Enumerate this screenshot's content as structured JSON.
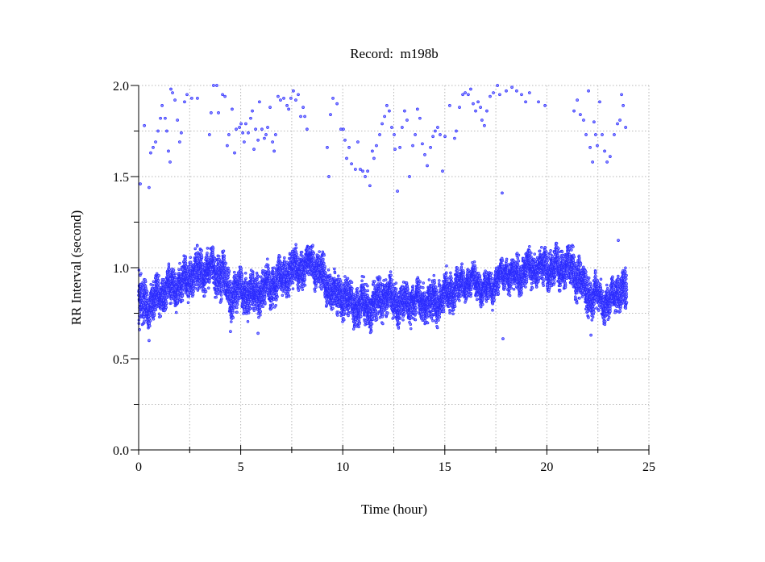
{
  "chart_data": {
    "type": "scatter",
    "title": "Record:  m198b",
    "xlabel": "Time (hour)",
    "ylabel": "RR Interval (second)",
    "xlim": [
      0,
      25
    ],
    "ylim": [
      0,
      2.0
    ],
    "xticks": [
      0,
      5,
      10,
      15,
      20,
      25
    ],
    "xtick_labels": [
      "0",
      "5",
      "10",
      "15",
      "20",
      "25"
    ],
    "xminor_ticks": [
      2.5,
      7.5,
      12.5,
      17.5,
      22.5
    ],
    "yticks": [
      0,
      0.5,
      1.0,
      1.5,
      2.0
    ],
    "ytick_labels": [
      "0.0",
      "0.5",
      "1.0",
      "1.5",
      "2.0"
    ],
    "yminor_ticks": [
      0.25,
      0.75,
      1.25,
      1.75
    ],
    "grid": true,
    "marker": "open-circle",
    "color": "#2a2aff",
    "dense_band": {
      "hours": [
        0,
        0.5,
        1,
        1.5,
        2,
        2.5,
        3,
        3.5,
        4,
        4.5,
        5,
        5.5,
        6,
        6.5,
        7,
        7.5,
        8,
        8.5,
        9,
        9.5,
        10,
        10.5,
        11,
        11.5,
        12,
        12.5,
        13,
        13.5,
        14,
        14.5,
        15,
        15.5,
        16,
        16.5,
        17,
        17.5,
        18,
        18.5,
        19,
        19.5,
        20,
        20.5,
        21,
        21.5,
        22,
        22.5,
        23,
        23.5,
        23.9
      ],
      "low": [
        0.65,
        0.7,
        0.75,
        0.8,
        0.8,
        0.85,
        0.88,
        0.9,
        0.85,
        0.75,
        0.78,
        0.75,
        0.78,
        0.8,
        0.85,
        0.88,
        0.9,
        0.95,
        0.85,
        0.75,
        0.75,
        0.7,
        0.68,
        0.7,
        0.75,
        0.72,
        0.7,
        0.72,
        0.72,
        0.7,
        0.75,
        0.8,
        0.85,
        0.85,
        0.8,
        0.85,
        0.9,
        0.85,
        0.9,
        0.92,
        0.9,
        0.9,
        0.9,
        0.85,
        0.75,
        0.75,
        0.72,
        0.78,
        0.75
      ],
      "high": [
        0.95,
        0.9,
        0.95,
        0.98,
        1.0,
        1.05,
        1.08,
        1.08,
        1.1,
        0.95,
        0.98,
        0.95,
        0.98,
        1.0,
        1.05,
        1.08,
        1.1,
        1.12,
        1.05,
        0.95,
        0.95,
        0.9,
        0.9,
        0.9,
        0.95,
        0.92,
        0.9,
        0.92,
        0.9,
        0.92,
        0.95,
        0.98,
        1.0,
        1.0,
        0.95,
        1.0,
        1.05,
        1.05,
        1.08,
        1.08,
        1.1,
        1.1,
        1.1,
        1.08,
        0.95,
        0.92,
        0.88,
        0.98,
        0.98
      ]
    },
    "outliers": [
      [
        0.08,
        1.46
      ],
      [
        0.28,
        1.78
      ],
      [
        0.51,
        1.44
      ],
      [
        0.59,
        1.63
      ],
      [
        0.71,
        1.66
      ],
      [
        0.83,
        1.69
      ],
      [
        0.95,
        1.75
      ],
      [
        1.07,
        1.82
      ],
      [
        1.15,
        1.89
      ],
      [
        1.3,
        1.82
      ],
      [
        1.38,
        1.75
      ],
      [
        1.46,
        1.64
      ],
      [
        1.54,
        1.58
      ],
      [
        1.58,
        1.98
      ],
      [
        1.66,
        1.96
      ],
      [
        1.78,
        1.92
      ],
      [
        1.9,
        1.81
      ],
      [
        2.01,
        1.69
      ],
      [
        2.09,
        1.74
      ],
      [
        2.25,
        1.91
      ],
      [
        2.37,
        1.95
      ],
      [
        2.6,
        1.93
      ],
      [
        2.88,
        1.93
      ],
      [
        3.47,
        1.73
      ],
      [
        3.55,
        1.85
      ],
      [
        3.67,
        2.0
      ],
      [
        3.83,
        2.0
      ],
      [
        3.91,
        1.85
      ],
      [
        4.11,
        1.95
      ],
      [
        4.23,
        1.94
      ],
      [
        4.34,
        1.67
      ],
      [
        4.42,
        1.73
      ],
      [
        4.58,
        1.87
      ],
      [
        4.7,
        1.63
      ],
      [
        4.78,
        1.76
      ],
      [
        4.94,
        1.77
      ],
      [
        5.02,
        1.79
      ],
      [
        5.1,
        1.74
      ],
      [
        5.17,
        1.69
      ],
      [
        5.25,
        1.79
      ],
      [
        5.37,
        1.74
      ],
      [
        5.49,
        1.82
      ],
      [
        5.57,
        1.86
      ],
      [
        5.65,
        1.65
      ],
      [
        5.73,
        1.76
      ],
      [
        5.85,
        1.7
      ],
      [
        5.92,
        1.91
      ],
      [
        6.04,
        1.76
      ],
      [
        6.16,
        1.71
      ],
      [
        6.24,
        1.73
      ],
      [
        6.32,
        1.77
      ],
      [
        6.44,
        1.88
      ],
      [
        6.56,
        1.69
      ],
      [
        6.64,
        1.64
      ],
      [
        6.71,
        1.73
      ],
      [
        6.83,
        1.94
      ],
      [
        6.95,
        1.92
      ],
      [
        7.11,
        1.93
      ],
      [
        7.27,
        1.89
      ],
      [
        7.35,
        1.87
      ],
      [
        7.46,
        1.93
      ],
      [
        7.58,
        1.97
      ],
      [
        7.7,
        1.92
      ],
      [
        7.82,
        1.95
      ],
      [
        7.94,
        1.83
      ],
      [
        8.06,
        1.88
      ],
      [
        8.14,
        1.83
      ],
      [
        8.25,
        1.76
      ],
      [
        9.24,
        1.66
      ],
      [
        9.32,
        1.5
      ],
      [
        9.4,
        1.84
      ],
      [
        9.52,
        1.93
      ],
      [
        9.72,
        1.9
      ],
      [
        9.91,
        1.76
      ],
      [
        10.03,
        1.76
      ],
      [
        10.11,
        1.7
      ],
      [
        10.19,
        1.6
      ],
      [
        10.31,
        1.66
      ],
      [
        10.43,
        1.57
      ],
      [
        10.62,
        1.54
      ],
      [
        10.74,
        1.69
      ],
      [
        10.86,
        1.54
      ],
      [
        10.98,
        1.53
      ],
      [
        11.1,
        1.5
      ],
      [
        11.22,
        1.53
      ],
      [
        11.33,
        1.45
      ],
      [
        11.45,
        1.64
      ],
      [
        11.53,
        1.6
      ],
      [
        11.65,
        1.67
      ],
      [
        11.81,
        1.73
      ],
      [
        11.93,
        1.79
      ],
      [
        12.05,
        1.83
      ],
      [
        12.16,
        1.89
      ],
      [
        12.28,
        1.86
      ],
      [
        12.4,
        1.77
      ],
      [
        12.52,
        1.73
      ],
      [
        12.56,
        1.65
      ],
      [
        12.68,
        1.42
      ],
      [
        12.8,
        1.66
      ],
      [
        12.91,
        1.77
      ],
      [
        13.03,
        1.86
      ],
      [
        13.15,
        1.81
      ],
      [
        13.27,
        1.5
      ],
      [
        13.43,
        1.67
      ],
      [
        13.55,
        1.73
      ],
      [
        13.66,
        1.87
      ],
      [
        13.78,
        1.82
      ],
      [
        13.9,
        1.68
      ],
      [
        14.02,
        1.62
      ],
      [
        14.14,
        1.56
      ],
      [
        14.3,
        1.66
      ],
      [
        14.42,
        1.72
      ],
      [
        14.53,
        1.75
      ],
      [
        14.65,
        1.77
      ],
      [
        14.77,
        1.73
      ],
      [
        14.89,
        1.53
      ],
      [
        15.01,
        1.72
      ],
      [
        15.24,
        1.89
      ],
      [
        15.48,
        1.71
      ],
      [
        15.56,
        1.75
      ],
      [
        15.72,
        1.88
      ],
      [
        15.88,
        1.95
      ],
      [
        16.0,
        1.96
      ],
      [
        16.15,
        1.95
      ],
      [
        16.27,
        1.98
      ],
      [
        16.39,
        1.9
      ],
      [
        16.51,
        1.86
      ],
      [
        16.63,
        1.91
      ],
      [
        16.75,
        1.88
      ],
      [
        16.82,
        1.81
      ],
      [
        16.94,
        1.78
      ],
      [
        17.06,
        1.86
      ],
      [
        17.22,
        1.94
      ],
      [
        17.38,
        1.96
      ],
      [
        17.58,
        2.0
      ],
      [
        17.69,
        1.95
      ],
      [
        17.81,
        1.41
      ],
      [
        18.01,
        1.97
      ],
      [
        18.29,
        1.99
      ],
      [
        18.52,
        1.97
      ],
      [
        18.76,
        1.95
      ],
      [
        18.96,
        1.91
      ],
      [
        19.15,
        1.96
      ],
      [
        19.59,
        1.91
      ],
      [
        19.91,
        1.89
      ],
      [
        21.33,
        1.86
      ],
      [
        21.49,
        1.92
      ],
      [
        21.64,
        1.84
      ],
      [
        21.8,
        1.81
      ],
      [
        21.92,
        1.73
      ],
      [
        22.04,
        1.97
      ],
      [
        22.12,
        1.66
      ],
      [
        22.24,
        1.58
      ],
      [
        22.31,
        1.8
      ],
      [
        22.39,
        1.73
      ],
      [
        22.47,
        1.67
      ],
      [
        22.59,
        1.91
      ],
      [
        22.71,
        1.73
      ],
      [
        22.83,
        1.64
      ],
      [
        22.95,
        1.58
      ],
      [
        23.1,
        1.61
      ],
      [
        23.3,
        1.73
      ],
      [
        23.46,
        1.79
      ],
      [
        23.58,
        1.81
      ],
      [
        23.66,
        1.95
      ],
      [
        23.74,
        1.89
      ],
      [
        23.86,
        1.77
      ],
      [
        0.04,
        0.66
      ],
      [
        0.51,
        0.6
      ],
      [
        4.5,
        0.65
      ],
      [
        5.85,
        0.64
      ],
      [
        17.85,
        0.61
      ],
      [
        22.16,
        0.63
      ],
      [
        23.5,
        1.15
      ]
    ]
  }
}
